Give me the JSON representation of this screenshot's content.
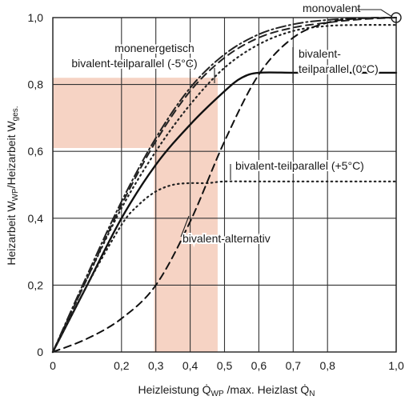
{
  "chart_data": {
    "type": "line",
    "title": "",
    "xlabel_main": "Heizleistung Q̇",
    "xlabel_sub1": "WP",
    "xlabel_mid": " /max. Heizlast Q̇",
    "xlabel_sub2": "N",
    "ylabel_main": "Heizarbeit W",
    "ylabel_sub1": "WP",
    "ylabel_mid": "/Heizarbeit W",
    "ylabel_sub2": "ges.",
    "xlim": [
      0,
      1.0
    ],
    "ylim": [
      0,
      1.0
    ],
    "grid": true,
    "x_ticks": [
      0,
      0.2,
      0.3,
      0.4,
      0.5,
      0.6,
      0.7,
      0.8,
      1.0
    ],
    "x_tick_labels": [
      "0",
      "0,2",
      "0,3",
      "0,4",
      "0,5",
      "0,6",
      "0,7",
      "0,8",
      "1,0"
    ],
    "y_ticks": [
      0,
      0.2,
      0.4,
      0.6,
      0.8,
      1.0
    ],
    "y_tick_labels": [
      "0",
      "0,2",
      "0,4",
      "0,6",
      "0,8",
      "1,0"
    ],
    "shaded_regions": [
      {
        "x": [
          0,
          0.48
        ],
        "y": [
          0.61,
          0.82
        ],
        "color": "#f6d3c4"
      },
      {
        "x": [
          0.295,
          0.48
        ],
        "y": [
          0,
          0.82
        ],
        "color": "#f6d3c4"
      }
    ],
    "series": [
      {
        "name": "monovalent",
        "style": "dashdot",
        "color": "#222222",
        "x": [
          0,
          0.1,
          0.2,
          0.3,
          0.4,
          0.5,
          0.6,
          0.7,
          0.8,
          0.9,
          1.0
        ],
        "y": [
          0,
          0.23,
          0.45,
          0.64,
          0.79,
          0.89,
          0.95,
          0.98,
          0.993,
          0.998,
          1.0
        ]
      },
      {
        "name": "monenergetisch",
        "style": "dashed",
        "color": "#222222",
        "x": [
          0,
          0.1,
          0.2,
          0.3,
          0.4,
          0.5,
          0.6,
          0.7,
          0.8,
          0.9,
          1.0
        ],
        "y": [
          0,
          0.22,
          0.44,
          0.63,
          0.78,
          0.88,
          0.94,
          0.97,
          0.985,
          0.995,
          1.0
        ]
      },
      {
        "name": "bivalent-teilparallel (-5°C)",
        "style": "dotted",
        "color": "#222222",
        "x": [
          0,
          0.1,
          0.2,
          0.3,
          0.4,
          0.5,
          0.6,
          0.7,
          0.8,
          0.9,
          1.0
        ],
        "y": [
          0,
          0.22,
          0.43,
          0.6,
          0.74,
          0.85,
          0.92,
          0.96,
          0.975,
          0.978,
          0.978
        ]
      },
      {
        "name": "bivalent-teilparallel (0°C)",
        "style": "solid",
        "color": "#111111",
        "x": [
          0,
          0.1,
          0.2,
          0.3,
          0.4,
          0.5,
          0.55,
          0.6,
          0.7,
          0.8,
          0.9,
          1.0
        ],
        "y": [
          0,
          0.2,
          0.4,
          0.56,
          0.68,
          0.78,
          0.82,
          0.835,
          0.835,
          0.835,
          0.835,
          0.835
        ]
      },
      {
        "name": "bivalent-teilparallel (+5°C)",
        "style": "dotted",
        "color": "#222222",
        "x": [
          0,
          0.1,
          0.2,
          0.25,
          0.3,
          0.35,
          0.4,
          0.45,
          0.5,
          0.6,
          0.8,
          1.0
        ],
        "y": [
          0,
          0.2,
          0.38,
          0.44,
          0.48,
          0.5,
          0.505,
          0.505,
          0.51,
          0.51,
          0.51,
          0.51
        ]
      },
      {
        "name": "bivalent-alternativ",
        "style": "dashed",
        "color": "#111111",
        "x": [
          0,
          0.1,
          0.2,
          0.3,
          0.4,
          0.5,
          0.6,
          0.7,
          0.8,
          0.9,
          1.0
        ],
        "y": [
          0,
          0.04,
          0.1,
          0.2,
          0.39,
          0.63,
          0.83,
          0.94,
          0.985,
          0.998,
          1.0
        ]
      }
    ],
    "annotations": [
      {
        "text": "monovalent",
        "target": [
          1.0,
          1.0
        ],
        "circle": true
      },
      {
        "text": "monenergetisch",
        "target": [
          0.47,
          0.82
        ]
      },
      {
        "text": "bivalent-teilparallel (-5°C)",
        "target": [
          0.47,
          0.82
        ]
      },
      {
        "text": "bivalent-",
        "target": [
          0.69,
          0.835
        ]
      },
      {
        "text": "teilparallel (0°C)",
        "target": [
          0.69,
          0.835
        ]
      },
      {
        "text": "bivalent-teilparallel (+5°C)",
        "target": [
          0.5,
          0.51
        ]
      },
      {
        "text": "bivalent-alternativ",
        "target": [
          0.4,
          0.38
        ]
      }
    ]
  }
}
